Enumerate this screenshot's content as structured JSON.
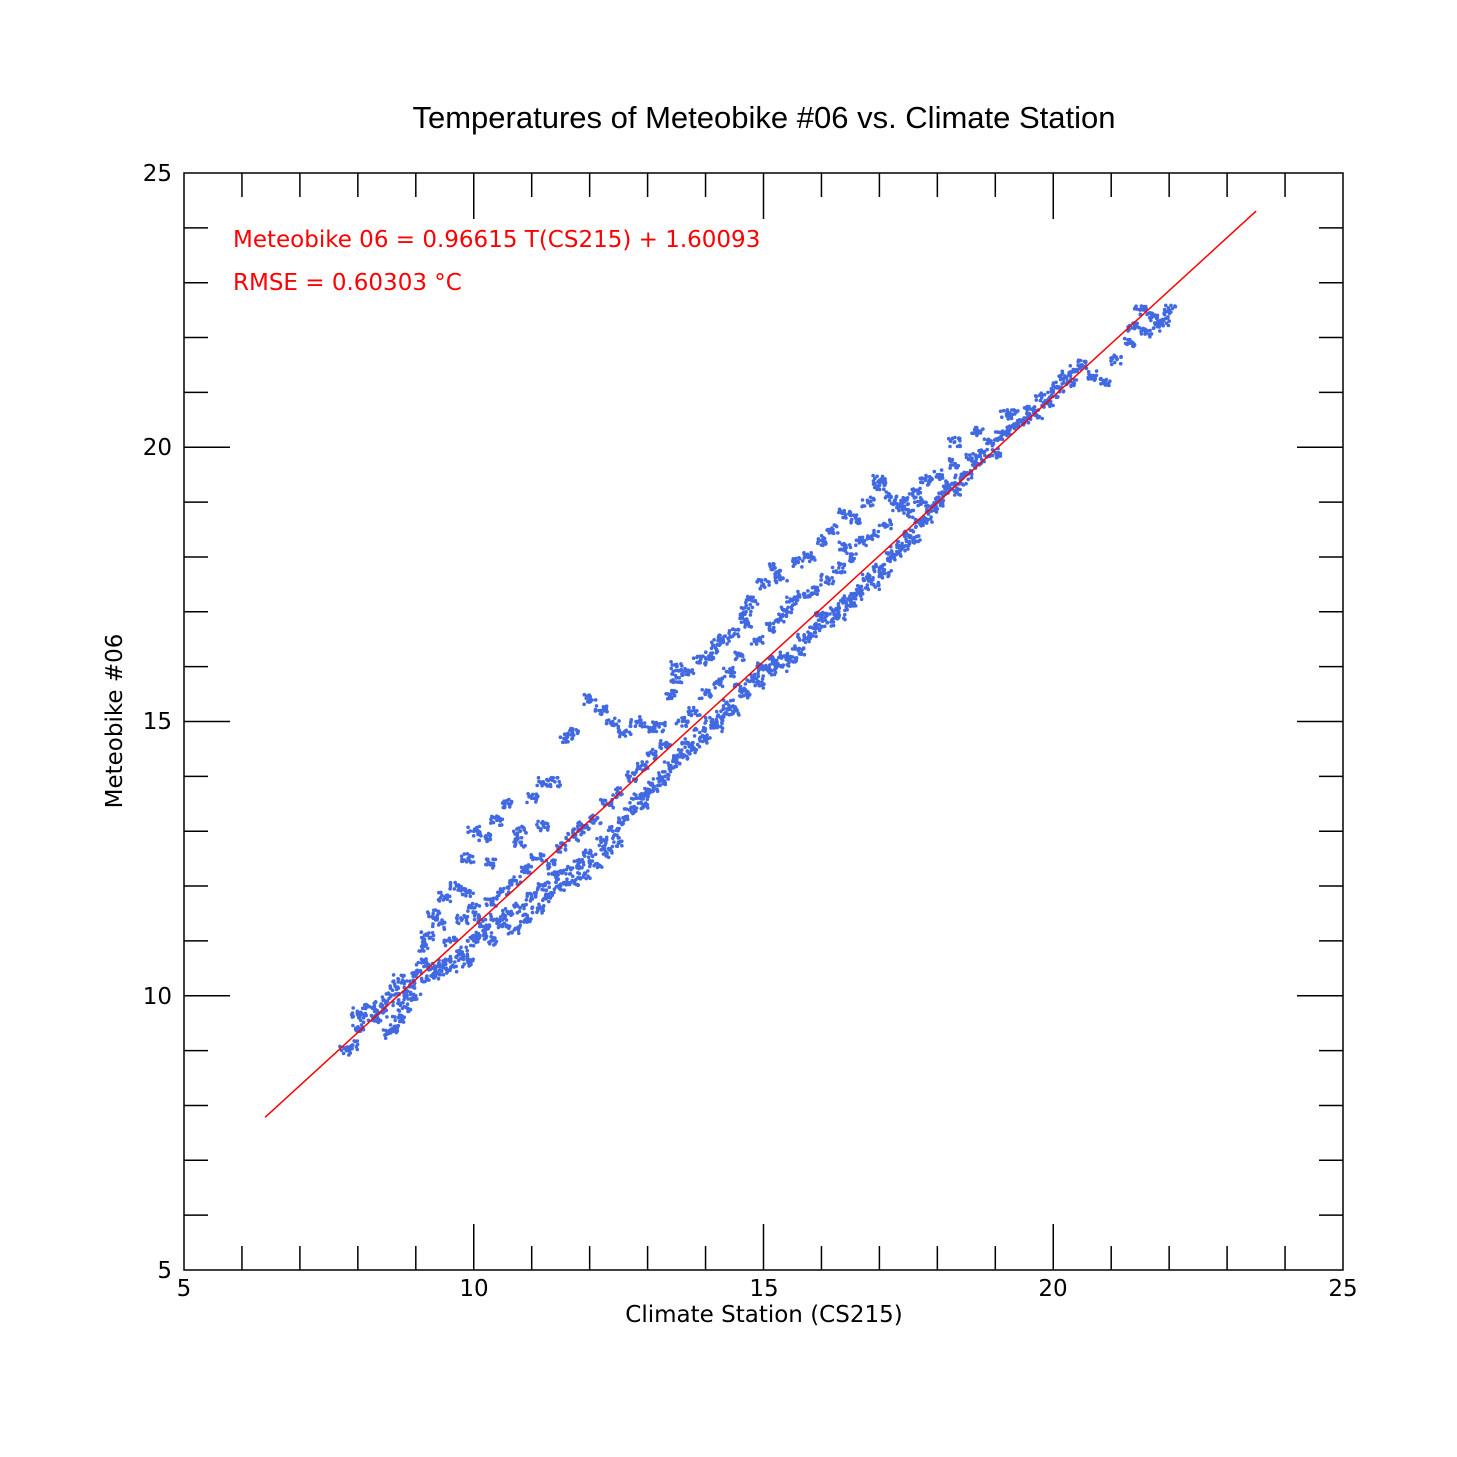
{
  "chart_data": {
    "type": "scatter",
    "title": "Temperatures of Meteobike #06 vs. Climate Station",
    "xlabel": "Climate Station (CS215)",
    "ylabel": "Meteobike #06",
    "xlim": [
      5,
      25
    ],
    "ylim": [
      5,
      25
    ],
    "xticks": [
      "5",
      "10",
      "15",
      "20",
      "25"
    ],
    "yticks": [
      "5",
      "10",
      "15",
      "20",
      "25"
    ],
    "grid": false,
    "colors": {
      "points": "#4169e1",
      "fit": "#ff0000"
    },
    "annotations": {
      "equation": "Meteobike 06 = 0.96615 T(CS215) + 1.60093",
      "rmse": "RMSE = 0.60303 °C"
    },
    "fit": {
      "slope": 0.96615,
      "intercept": 1.60093,
      "x_range": [
        6.4,
        23.5
      ]
    },
    "series": [
      {
        "points": [
          [
            7.8,
            9.0
          ],
          [
            7.9,
            9.1
          ],
          [
            8.0,
            9.4
          ],
          [
            8.0,
            9.7
          ],
          [
            8.1,
            9.6
          ],
          [
            8.2,
            9.8
          ],
          [
            8.3,
            9.6
          ],
          [
            8.4,
            9.7
          ],
          [
            8.5,
            9.9
          ],
          [
            8.5,
            9.3
          ],
          [
            8.6,
            9.4
          ],
          [
            8.6,
            10.1
          ],
          [
            8.7,
            9.6
          ],
          [
            8.7,
            10.3
          ],
          [
            8.8,
            10.0
          ],
          [
            8.8,
            9.8
          ],
          [
            8.9,
            10.2
          ],
          [
            9.0,
            10.4
          ],
          [
            9.0,
            10.0
          ],
          [
            9.1,
            10.6
          ],
          [
            9.1,
            10.9
          ],
          [
            9.2,
            10.3
          ],
          [
            9.2,
            11.1
          ],
          [
            9.3,
            10.5
          ],
          [
            9.3,
            11.5
          ],
          [
            9.4,
            10.4
          ],
          [
            9.4,
            11.3
          ],
          [
            9.5,
            10.6
          ],
          [
            9.5,
            11.8
          ],
          [
            9.6,
            10.5
          ],
          [
            9.6,
            11.0
          ],
          [
            9.7,
            10.7
          ],
          [
            9.7,
            12.0
          ],
          [
            9.8,
            10.8
          ],
          [
            9.8,
            11.4
          ],
          [
            9.9,
            10.6
          ],
          [
            9.9,
            12.5
          ],
          [
            10.0,
            11.0
          ],
          [
            10.0,
            11.6
          ],
          [
            10.0,
            13.0
          ],
          [
            10.1,
            11.1
          ],
          [
            10.1,
            11.4
          ],
          [
            10.2,
            11.2
          ],
          [
            10.2,
            12.9
          ],
          [
            10.3,
            11.0
          ],
          [
            10.3,
            11.7
          ],
          [
            10.4,
            11.4
          ],
          [
            10.4,
            13.2
          ],
          [
            10.5,
            11.3
          ],
          [
            10.5,
            11.9
          ],
          [
            10.6,
            11.5
          ],
          [
            10.6,
            13.5
          ],
          [
            10.7,
            11.2
          ],
          [
            10.7,
            12.1
          ],
          [
            10.8,
            11.6
          ],
          [
            10.8,
            13.0
          ],
          [
            10.9,
            11.4
          ],
          [
            10.9,
            12.3
          ],
          [
            11.0,
            11.8
          ],
          [
            11.0,
            13.6
          ],
          [
            11.1,
            11.6
          ],
          [
            11.1,
            12.5
          ],
          [
            11.2,
            12.0
          ],
          [
            11.2,
            13.1
          ],
          [
            11.3,
            11.8
          ],
          [
            11.3,
            12.4
          ],
          [
            11.4,
            12.2
          ],
          [
            11.4,
            13.9
          ],
          [
            11.5,
            12.0
          ],
          [
            11.5,
            12.7
          ],
          [
            11.6,
            12.3
          ],
          [
            11.6,
            14.7
          ],
          [
            11.7,
            12.1
          ],
          [
            11.7,
            12.9
          ],
          [
            11.8,
            12.4
          ],
          [
            11.8,
            13.0
          ],
          [
            11.9,
            12.2
          ],
          [
            11.9,
            13.1
          ],
          [
            12.0,
            12.6
          ],
          [
            12.0,
            15.4
          ],
          [
            12.1,
            12.4
          ],
          [
            12.1,
            13.2
          ],
          [
            12.2,
            12.8
          ],
          [
            12.2,
            15.2
          ],
          [
            12.3,
            12.6
          ],
          [
            12.3,
            13.5
          ],
          [
            12.4,
            13.0
          ],
          [
            12.4,
            15.0
          ],
          [
            12.5,
            12.8
          ],
          [
            12.5,
            13.7
          ],
          [
            12.6,
            13.2
          ],
          [
            12.6,
            14.8
          ],
          [
            12.7,
            13.4
          ],
          [
            12.7,
            14.0
          ],
          [
            12.8,
            13.6
          ],
          [
            12.8,
            15.0
          ],
          [
            12.9,
            13.5
          ],
          [
            12.9,
            14.2
          ],
          [
            13.0,
            13.7
          ],
          [
            13.0,
            14.9
          ],
          [
            13.1,
            13.8
          ],
          [
            13.1,
            14.4
          ],
          [
            13.2,
            13.9
          ],
          [
            13.2,
            14.9
          ],
          [
            13.3,
            14.0
          ],
          [
            13.3,
            14.6
          ],
          [
            13.4,
            14.2
          ],
          [
            13.4,
            15.5
          ],
          [
            13.5,
            14.3
          ],
          [
            13.5,
            15.8
          ],
          [
            13.6,
            14.4
          ],
          [
            13.6,
            15.0
          ],
          [
            13.7,
            14.6
          ],
          [
            13.7,
            15.9
          ],
          [
            13.8,
            14.5
          ],
          [
            13.8,
            15.2
          ],
          [
            13.9,
            14.8
          ],
          [
            13.9,
            16.1
          ],
          [
            14.0,
            14.7
          ],
          [
            14.0,
            15.5
          ],
          [
            14.1,
            15.0
          ],
          [
            14.1,
            16.2
          ],
          [
            14.2,
            14.9
          ],
          [
            14.2,
            15.7
          ],
          [
            14.3,
            15.1
          ],
          [
            14.3,
            16.5
          ],
          [
            14.4,
            15.3
          ],
          [
            14.4,
            15.9
          ],
          [
            14.5,
            15.2
          ],
          [
            14.5,
            16.6
          ],
          [
            14.6,
            15.6
          ],
          [
            14.6,
            16.2
          ],
          [
            14.7,
            15.5
          ],
          [
            14.7,
            16.8
          ],
          [
            14.8,
            15.8
          ],
          [
            14.8,
            17.2
          ],
          [
            14.9,
            15.7
          ],
          [
            14.9,
            16.5
          ],
          [
            15.0,
            16.0
          ],
          [
            15.0,
            17.5
          ],
          [
            15.1,
            15.9
          ],
          [
            15.1,
            16.7
          ],
          [
            15.2,
            16.1
          ],
          [
            15.2,
            17.8
          ],
          [
            15.3,
            16.0
          ],
          [
            15.3,
            16.9
          ],
          [
            15.4,
            16.2
          ],
          [
            15.4,
            17.0
          ],
          [
            15.5,
            16.1
          ],
          [
            15.5,
            17.2
          ],
          [
            15.6,
            16.3
          ],
          [
            15.6,
            17.9
          ],
          [
            15.7,
            16.5
          ],
          [
            15.7,
            17.3
          ],
          [
            15.8,
            16.6
          ],
          [
            15.8,
            18.0
          ],
          [
            15.9,
            16.7
          ],
          [
            15.9,
            17.4
          ],
          [
            16.0,
            16.9
          ],
          [
            16.0,
            18.3
          ],
          [
            16.1,
            16.8
          ],
          [
            16.1,
            17.6
          ],
          [
            16.2,
            17.0
          ],
          [
            16.2,
            18.5
          ],
          [
            16.3,
            16.9
          ],
          [
            16.3,
            17.8
          ],
          [
            16.4,
            17.2
          ],
          [
            16.4,
            18.2
          ],
          [
            16.5,
            17.1
          ],
          [
            16.5,
            18.0
          ],
          [
            16.6,
            17.3
          ],
          [
            16.6,
            18.7
          ],
          [
            16.7,
            17.4
          ],
          [
            16.7,
            18.3
          ],
          [
            16.8,
            17.6
          ],
          [
            16.8,
            19.0
          ],
          [
            16.9,
            17.5
          ],
          [
            16.9,
            18.4
          ],
          [
            17.0,
            17.8
          ],
          [
            17.0,
            19.3
          ],
          [
            17.1,
            17.7
          ],
          [
            17.1,
            18.6
          ],
          [
            17.2,
            18.0
          ],
          [
            17.2,
            19.1
          ],
          [
            17.3,
            18.1
          ],
          [
            17.3,
            18.9
          ],
          [
            17.4,
            18.2
          ],
          [
            17.4,
            19.0
          ],
          [
            17.5,
            18.4
          ],
          [
            17.5,
            18.8
          ],
          [
            17.6,
            18.3
          ],
          [
            17.6,
            19.2
          ],
          [
            17.7,
            18.6
          ],
          [
            17.7,
            19.0
          ],
          [
            17.8,
            18.7
          ],
          [
            17.8,
            19.4
          ],
          [
            17.9,
            18.9
          ],
          [
            18.0,
            19.0
          ],
          [
            18.0,
            19.5
          ],
          [
            18.1,
            19.1
          ],
          [
            18.2,
            19.3
          ],
          [
            18.3,
            19.2
          ],
          [
            18.3,
            19.7
          ],
          [
            18.4,
            19.4
          ],
          [
            18.5,
            19.5
          ],
          [
            18.6,
            19.8
          ],
          [
            18.7,
            19.7
          ],
          [
            18.8,
            19.9
          ],
          [
            18.9,
            20.1
          ],
          [
            19.0,
            19.9
          ],
          [
            19.1,
            20.2
          ],
          [
            19.2,
            20.3
          ],
          [
            19.3,
            20.6
          ],
          [
            19.4,
            20.4
          ],
          [
            19.5,
            20.5
          ],
          [
            19.6,
            20.7
          ],
          [
            19.7,
            20.6
          ],
          [
            19.8,
            20.9
          ],
          [
            19.9,
            20.8
          ],
          [
            20.0,
            21.0
          ],
          [
            20.1,
            21.1
          ],
          [
            20.2,
            21.3
          ],
          [
            20.3,
            21.2
          ],
          [
            20.4,
            21.4
          ],
          [
            20.5,
            21.5
          ],
          [
            20.7,
            21.3
          ],
          [
            20.9,
            21.2
          ],
          [
            21.1,
            21.6
          ],
          [
            21.3,
            21.9
          ],
          [
            21.4,
            22.2
          ],
          [
            21.5,
            22.5
          ],
          [
            21.6,
            22.1
          ],
          [
            21.7,
            22.4
          ],
          [
            21.8,
            22.2
          ],
          [
            21.9,
            22.3
          ],
          [
            22.0,
            22.5
          ],
          [
            11.7,
            14.8
          ],
          [
            11.2,
            13.9
          ],
          [
            10.8,
            12.8
          ],
          [
            10.3,
            12.4
          ],
          [
            9.9,
            11.9
          ],
          [
            13.5,
            16.0
          ],
          [
            14.2,
            16.4
          ],
          [
            14.7,
            17.0
          ],
          [
            15.3,
            17.6
          ],
          [
            16.4,
            18.8
          ],
          [
            17.0,
            19.4
          ],
          [
            18.3,
            20.1
          ],
          [
            18.7,
            20.3
          ],
          [
            19.2,
            20.6
          ]
        ]
      }
    ]
  }
}
